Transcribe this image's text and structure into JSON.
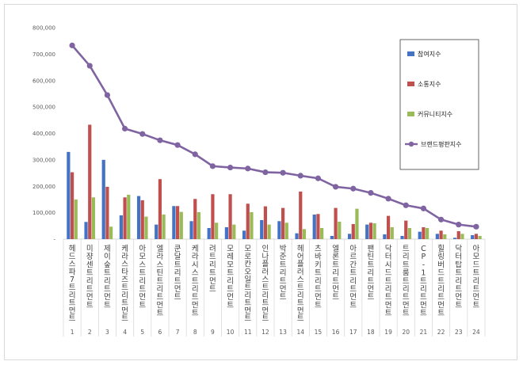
{
  "chart_data": {
    "type": "bar",
    "title": "",
    "xlabel": "",
    "ylabel": "",
    "ylim": [
      0,
      800000
    ],
    "yticks": [
      "800,000",
      "700,000",
      "600,000",
      "500,000",
      "400,000",
      "300,000",
      "200,000",
      "100,000",
      "-"
    ],
    "ytick_values": [
      800000,
      700000,
      600000,
      500000,
      400000,
      300000,
      200000,
      100000,
      0
    ],
    "grid": false,
    "legend_position": "right",
    "categories": [
      "헤드스파7트리트먼트",
      "미쟝센트리트먼트",
      "제이숲트리트먼트",
      "케라스타즈트리트먼트",
      "아모스트리트먼트",
      "엘라스틴트리트먼트",
      "쿤달트리트먼트",
      "케라시스트리트먼트",
      "려트리트먼트",
      "모레모트리트먼트",
      "모로칸오일트리트먼트",
      "인나플러스트리트먼트",
      "박준트리트먼트",
      "헤어플러스트리트먼트",
      "츠바키트리트먼트",
      "엘론트리트먼트",
      "아르간트리트먼트",
      "팬틴트리트먼트",
      "닥터시드트리트먼트",
      "트리트룸트리트먼트",
      "CP-1트리트먼트",
      "힐링버드트리트먼트",
      "닥터탑트리트먼트",
      "아모드트리트먼트"
    ],
    "ranks": [
      "1",
      "2",
      "3",
      "4",
      "5",
      "6",
      "7",
      "8",
      "9",
      "10",
      "11",
      "12",
      "13",
      "14",
      "15",
      "16",
      "17",
      "18",
      "19",
      "20",
      "21",
      "22",
      "23",
      "24"
    ],
    "series": [
      {
        "name": "참여지수",
        "type": "bar",
        "color": "#4472c4",
        "values": [
          330000,
          65000,
          300000,
          90000,
          163000,
          55000,
          125000,
          68000,
          42000,
          45000,
          32000,
          72000,
          68000,
          22000,
          93000,
          12000,
          20000,
          55000,
          18000,
          12000,
          28000,
          20000,
          5000,
          15000
        ]
      },
      {
        "name": "소통지수",
        "type": "bar",
        "color": "#c0504d",
        "values": [
          253000,
          433000,
          198000,
          158000,
          147000,
          227000,
          125000,
          152000,
          170000,
          170000,
          134000,
          124000,
          118000,
          180000,
          95000,
          118000,
          57000,
          62000,
          88000,
          70000,
          45000,
          32000,
          30000,
          20000
        ]
      },
      {
        "name": "커뮤니티지수",
        "type": "bar",
        "color": "#9bbb59",
        "values": [
          150000,
          158000,
          47000,
          168000,
          85000,
          93000,
          103000,
          102000,
          62000,
          55000,
          102000,
          55000,
          62000,
          38000,
          42000,
          66000,
          115000,
          60000,
          45000,
          42000,
          42000,
          18000,
          20000,
          12000
        ]
      },
      {
        "name": "브랜드평판지수",
        "type": "line",
        "color": "#8064a2",
        "values": [
          733000,
          656000,
          545000,
          418000,
          398000,
          374000,
          356000,
          321000,
          276000,
          271000,
          267000,
          253000,
          251000,
          240000,
          230000,
          198000,
          191000,
          175000,
          153000,
          128000,
          116000,
          74000,
          55000,
          47000
        ]
      }
    ]
  }
}
